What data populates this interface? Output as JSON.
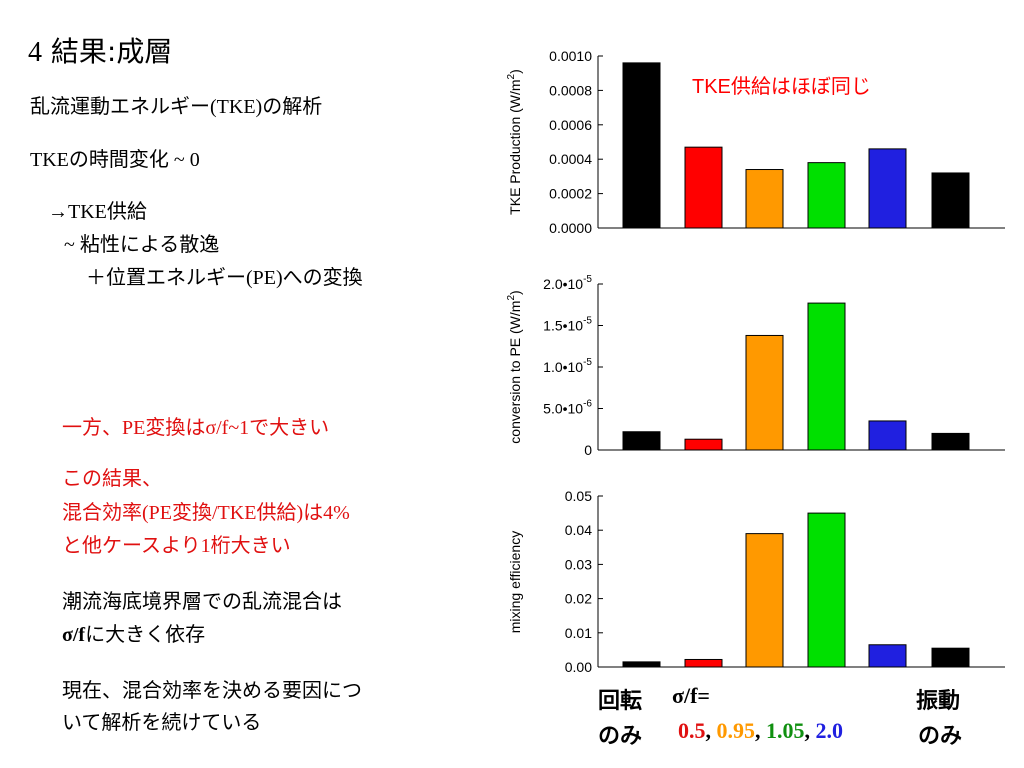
{
  "slide": {
    "title": {
      "num": "4",
      "text": "結果",
      "colon": ":",
      "text2": "成層"
    },
    "lines": {
      "l1a": "乱流運動エネルギー",
      "l1b": "(TKE)",
      "l1c": "の解析",
      "l2a": "TKE",
      "l2b": "の時間変化",
      "l2c": " ~ 0",
      "l3a": "→TKE",
      "l3b": "供給",
      "l4a": "~ ",
      "l4b": "粘性による散逸",
      "l5a": "＋位置エネルギー",
      "l5b": "(PE)",
      "l5c": "への変換",
      "r1a": "一方、",
      "r1b": "PE",
      "r1c": "変換は",
      "r1d": "σ/f~1",
      "r1e": "で大きい",
      "r2": "この結果、",
      "r3a": "混合効率",
      "r3b": "(PE",
      "r3c": "変換",
      "r3d": "/TKE",
      "r3e": "供給",
      "r3f": ")",
      "r3g": "は",
      "r3h": "4%",
      "r4a": "と他ケースより",
      "r4b": "1",
      "r4c": "桁大きい",
      "p1": "潮流海底境界層での乱流混合は",
      "p2a": "σ/f",
      "p2b": "に大きく依存",
      "p3": "現在、混合効率を決める要因につ",
      "p4": "いて解析を続けている"
    }
  },
  "bottom_labels": {
    "left_top": "回転",
    "left_bottom": "のみ",
    "sigma_label": "σ/f=",
    "right_top": "振動",
    "right_bottom": "のみ",
    "v1": "0.5",
    "v2": "0.95",
    "v3": "1.05",
    "v4": "2.0",
    "sep": ", "
  },
  "colors": {
    "red": "#ff0000",
    "orange": "#ff9900",
    "green": "#00e000",
    "blue": "#2020e0",
    "black": "#000000",
    "text_red": "#e01010"
  },
  "chart_data": [
    {
      "type": "bar",
      "ylabel": "TKE Production (W/m²)",
      "annotation": "TKE供給はほぼ同じ",
      "ylim": [
        0,
        0.001
      ],
      "yticks": [
        0.0,
        0.0002,
        0.0004,
        0.0006,
        0.0008,
        0.001
      ],
      "ytick_labels": [
        "0.0000",
        "0.0002",
        "0.0004",
        "0.0006",
        "0.0008",
        "0.0010"
      ],
      "values": [
        0.00096,
        0.00047,
        0.00034,
        0.00038,
        0.00046,
        0.00032
      ],
      "colors": [
        "#000000",
        "#ff0000",
        "#ff9900",
        "#00e000",
        "#2020e0",
        "#000000"
      ]
    },
    {
      "type": "bar",
      "ylabel": "conversion to PE (W/m²)",
      "ylim": [
        0,
        2e-05
      ],
      "yticks": [
        0,
        5e-06,
        1e-05,
        1.5e-05,
        2e-05
      ],
      "ytick_labels": [
        "0",
        "5.0•10-6",
        "1.0•10-5",
        "1.5•10-5",
        "2.0•10-5"
      ],
      "values": [
        2.2e-06,
        1.3e-06,
        1.38e-05,
        1.77e-05,
        3.5e-06,
        2e-06
      ],
      "colors": [
        "#000000",
        "#ff0000",
        "#ff9900",
        "#00e000",
        "#2020e0",
        "#000000"
      ]
    },
    {
      "type": "bar",
      "ylabel": "mixing efficiency",
      "ylim": [
        0,
        0.05
      ],
      "yticks": [
        0.0,
        0.01,
        0.02,
        0.03,
        0.04,
        0.05
      ],
      "ytick_labels": [
        "0.00",
        "0.01",
        "0.02",
        "0.03",
        "0.04",
        "0.05"
      ],
      "values": [
        0.0015,
        0.0022,
        0.039,
        0.045,
        0.0065,
        0.0055
      ],
      "colors": [
        "#000000",
        "#ff0000",
        "#ff9900",
        "#00e000",
        "#2020e0",
        "#000000"
      ]
    }
  ]
}
